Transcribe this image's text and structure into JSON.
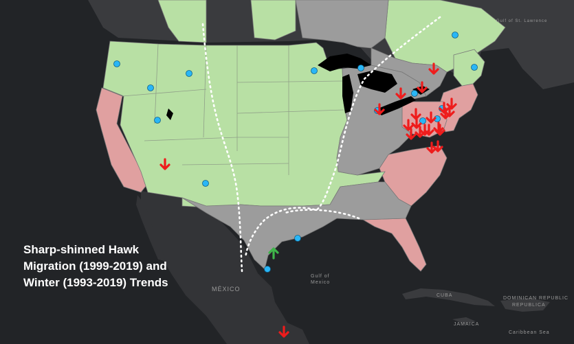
{
  "title_lines": [
    "Sharp-shinned Hawk",
    "Migration (1999-2019) and",
    "Winter (1993-2019) Trends"
  ],
  "map_labels": {
    "mexico": "MÉXICO",
    "gulf_line1": "Gulf of",
    "gulf_line2": "Mexico",
    "cuba": "CUBA",
    "dominican_line1": "DOMINICAN REPUBLIC",
    "dominican_line2": "REPUBLICA",
    "jamaica": "JAMAICA",
    "caribbean": "Caribbean Sea",
    "gulf_st_lawrence": "Gulf of St. Lawrence"
  },
  "colors": {
    "ocean": "#222427",
    "foreign_land": "#3a3b3e",
    "no_trend_state": "#9c9c9c",
    "increase_state": "#b8e0a4",
    "decrease_state": "#e0a0a0",
    "great_lakes": "#000000",
    "site_marker": "#29b6f6",
    "decline_arrow": "#ee1c1c",
    "increase_arrow": "#3fb54a",
    "flyway_line": "#ffffff"
  },
  "legend_semantics": {
    "green_states": "increasing trend",
    "red_states": "decreasing trend",
    "grey_states": "no trend",
    "blue_dots": "migration monitoring sites",
    "red_arrows": "declining site",
    "green_arrows": "increasing site"
  },
  "counts": {
    "monitoring_sites": 16,
    "decline_arrows": 22,
    "increase_arrows": 1
  }
}
